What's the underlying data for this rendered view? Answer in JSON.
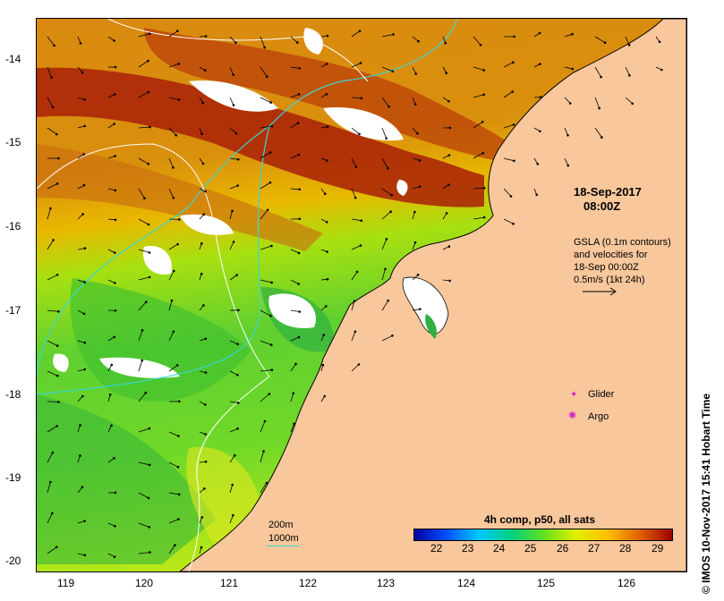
{
  "map": {
    "date": "18-Sep-2017",
    "time": "08:00Z",
    "gsla_lines": [
      "GSLA (0.1m contours)",
      "and velocities for",
      "18-Sep 00:00Z",
      "0.5m/s (1kt 24h)"
    ],
    "legend": {
      "glider_label": "Glider",
      "argo_label": "Argo",
      "glider_color": "#d020d0",
      "argo_color": "#d020d0"
    },
    "contours": {
      "c200_label": "200m",
      "c1000_label": "1000m",
      "c1000_color": "#3cd6d0"
    },
    "colorbar": {
      "title": "4h comp, p50, all sats",
      "ticks": [
        "22",
        "23",
        "24",
        "25",
        "26",
        "27",
        "28",
        "29"
      ],
      "colors": [
        "#0000a0",
        "#0050ff",
        "#00c8ff",
        "#00d080",
        "#60e020",
        "#e0f000",
        "#ffc000",
        "#e06000",
        "#a00000"
      ]
    },
    "credit": "© IMOS 10-Nov-2017 15:41 Hobart Time",
    "lat_ticks": [
      "-14",
      "-15",
      "-16",
      "-17",
      "-18",
      "-19",
      "-20"
    ],
    "lon_ticks": [
      "119",
      "120",
      "121",
      "122",
      "123",
      "124",
      "125",
      "126"
    ],
    "land_color": "#f8c79c"
  }
}
